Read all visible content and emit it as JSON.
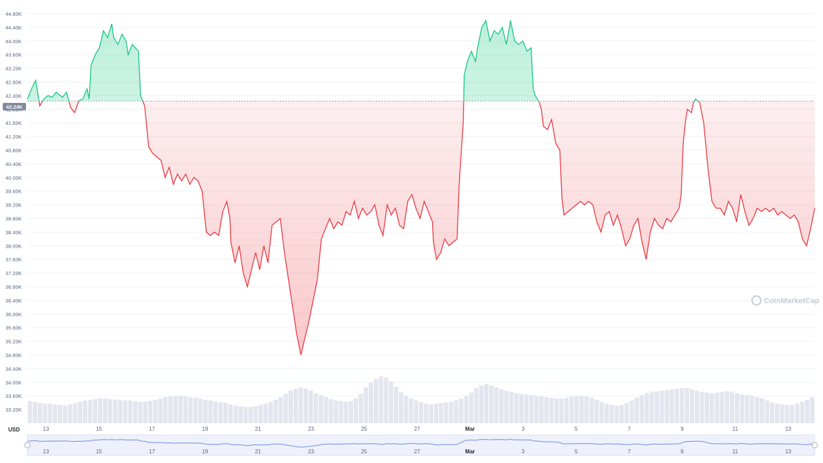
{
  "chart_data": {
    "type": "area",
    "currency": "USD",
    "current_price_label": "42.24K",
    "reference_price": 42240,
    "ylim": [
      32800,
      45000
    ],
    "yticks": [
      "33.20K",
      "33.60K",
      "34.00K",
      "34.40K",
      "34.80K",
      "35.20K",
      "35.60K",
      "36.00K",
      "36.40K",
      "36.80K",
      "37.20K",
      "37.60K",
      "38.00K",
      "38.40K",
      "38.80K",
      "39.20K",
      "39.60K",
      "40.00K",
      "40.40K",
      "40.80K",
      "41.20K",
      "41.60K",
      "42.00K",
      "42.40K",
      "42.80K",
      "43.20K",
      "43.60K",
      "44.00K",
      "44.40K",
      "44.80K"
    ],
    "ytick_values": [
      33200,
      33600,
      34000,
      34400,
      34800,
      35200,
      35600,
      36000,
      36400,
      36800,
      37200,
      37600,
      38000,
      38400,
      38800,
      39200,
      39600,
      40000,
      40400,
      40800,
      41200,
      41600,
      42000,
      42400,
      42800,
      43200,
      43600,
      44000,
      44400,
      44800
    ],
    "xticks": [
      "13",
      "15",
      "17",
      "19",
      "21",
      "23",
      "25",
      "27",
      "Mar",
      "3",
      "5",
      "7",
      "9",
      "11",
      "13"
    ],
    "xtick_days": [
      13,
      15,
      17,
      19,
      21,
      23,
      25,
      27,
      29,
      31,
      33,
      35,
      37,
      39,
      41
    ],
    "xrange_days": [
      12.1,
      42.4
    ],
    "x_unit_note_hidden": false,
    "series": [
      {
        "values": [
          [
            12.1,
            42300
          ],
          [
            12.3,
            42600
          ],
          [
            12.5,
            42850
          ],
          [
            12.7,
            42100
          ],
          [
            12.9,
            42300
          ],
          [
            13.1,
            42400
          ],
          [
            13.3,
            42350
          ],
          [
            13.5,
            42500
          ],
          [
            13.8,
            42350
          ],
          [
            14.0,
            42500
          ],
          [
            14.2,
            42050
          ],
          [
            14.4,
            41900
          ],
          [
            14.6,
            42250
          ],
          [
            14.8,
            42300
          ],
          [
            15.0,
            42600
          ],
          [
            15.1,
            42300
          ],
          [
            15.2,
            43300
          ],
          [
            15.4,
            43600
          ],
          [
            15.6,
            43800
          ],
          [
            15.8,
            44300
          ],
          [
            16.0,
            44100
          ],
          [
            16.2,
            44500
          ],
          [
            16.3,
            44100
          ],
          [
            16.5,
            43900
          ],
          [
            16.7,
            44200
          ],
          [
            16.9,
            44000
          ],
          [
            17.0,
            43600
          ],
          [
            17.2,
            43900
          ],
          [
            17.5,
            43700
          ],
          [
            17.6,
            42400
          ],
          [
            17.8,
            42100
          ],
          [
            18.0,
            40900
          ],
          [
            18.2,
            40700
          ],
          [
            18.4,
            40600
          ],
          [
            18.6,
            40500
          ],
          [
            18.8,
            40000
          ],
          [
            19.0,
            40300
          ],
          [
            19.2,
            39800
          ],
          [
            19.4,
            40100
          ],
          [
            19.6,
            39900
          ],
          [
            19.8,
            40100
          ],
          [
            20.0,
            39800
          ],
          [
            20.2,
            40000
          ],
          [
            20.4,
            39900
          ],
          [
            20.6,
            39600
          ],
          [
            20.8,
            38400
          ],
          [
            21.0,
            38300
          ],
          [
            21.2,
            38400
          ],
          [
            21.4,
            38300
          ],
          [
            21.6,
            39000
          ],
          [
            21.8,
            39300
          ],
          [
            21.95,
            38800
          ],
          [
            22.0,
            38100
          ],
          [
            22.2,
            37500
          ],
          [
            22.4,
            38000
          ],
          [
            22.6,
            37200
          ],
          [
            22.8,
            36800
          ],
          [
            23.0,
            37300
          ],
          [
            23.2,
            37800
          ],
          [
            23.4,
            37300
          ],
          [
            23.6,
            38000
          ],
          [
            23.8,
            37500
          ],
          [
            24.0,
            38600
          ],
          [
            24.2,
            38700
          ],
          [
            24.4,
            38800
          ],
          [
            24.6,
            37800
          ],
          [
            24.8,
            37000
          ],
          [
            25.0,
            36200
          ],
          [
            25.2,
            35400
          ],
          [
            25.4,
            34800
          ],
          [
            25.6,
            35300
          ],
          [
            25.8,
            35800
          ],
          [
            26.0,
            36400
          ],
          [
            26.2,
            37000
          ],
          [
            26.4,
            38200
          ],
          [
            26.6,
            38500
          ],
          [
            26.8,
            38800
          ],
          [
            27.0,
            38500
          ],
          [
            27.2,
            38700
          ],
          [
            27.4,
            38600
          ],
          [
            27.6,
            39000
          ],
          [
            27.8,
            38900
          ],
          [
            28.0,
            39300
          ],
          [
            28.2,
            38800
          ],
          [
            28.4,
            39100
          ],
          [
            28.6,
            38900
          ],
          [
            28.8,
            39000
          ],
          [
            29.0,
            39200
          ],
          [
            29.2,
            38600
          ],
          [
            29.4,
            38300
          ],
          [
            29.6,
            39200
          ],
          [
            29.8,
            38900
          ],
          [
            30.0,
            39100
          ],
          [
            30.2,
            38600
          ],
          [
            30.4,
            38500
          ],
          [
            30.6,
            39300
          ],
          [
            30.8,
            39500
          ],
          [
            31.0,
            39100
          ],
          [
            31.2,
            38800
          ],
          [
            31.4,
            39300
          ],
          [
            31.6,
            39000
          ],
          [
            31.8,
            38700
          ],
          [
            31.85,
            38100
          ],
          [
            32.0,
            37600
          ],
          [
            32.2,
            37800
          ],
          [
            32.4,
            38200
          ],
          [
            32.6,
            38000
          ],
          [
            32.8,
            38100
          ],
          [
            33.0,
            38200
          ],
          [
            33.1,
            39800
          ],
          [
            33.2,
            40700
          ],
          [
            33.3,
            41600
          ],
          [
            33.35,
            43000
          ],
          [
            33.5,
            43400
          ],
          [
            33.7,
            43700
          ],
          [
            33.9,
            43400
          ],
          [
            34.0,
            43800
          ],
          [
            34.2,
            44400
          ],
          [
            34.4,
            44600
          ],
          [
            34.6,
            44000
          ],
          [
            34.8,
            44300
          ],
          [
            35.0,
            44200
          ],
          [
            35.2,
            44400
          ],
          [
            35.4,
            43900
          ],
          [
            35.6,
            44600
          ],
          [
            35.8,
            44000
          ],
          [
            36.0,
            43900
          ],
          [
            36.2,
            44000
          ],
          [
            36.4,
            43700
          ],
          [
            36.6,
            43800
          ],
          [
            36.7,
            42600
          ],
          [
            36.8,
            42400
          ],
          [
            37.0,
            42200
          ],
          [
            37.1,
            42000
          ],
          [
            37.2,
            41500
          ],
          [
            37.4,
            41400
          ],
          [
            37.6,
            41700
          ],
          [
            37.8,
            41000
          ],
          [
            38.0,
            40800
          ],
          [
            38.1,
            39400
          ],
          [
            38.2,
            38900
          ],
          [
            38.4,
            39000
          ],
          [
            38.6,
            39100
          ],
          [
            38.8,
            39200
          ],
          [
            39.0,
            39300
          ],
          [
            39.2,
            39200
          ],
          [
            39.4,
            39300
          ],
          [
            39.6,
            39200
          ],
          [
            39.8,
            38700
          ],
          [
            40.0,
            38400
          ],
          [
            40.2,
            38900
          ],
          [
            40.4,
            39000
          ],
          [
            40.6,
            38600
          ],
          [
            40.8,
            38900
          ],
          [
            41.0,
            38500
          ],
          [
            41.2,
            38000
          ],
          [
            41.4,
            38200
          ],
          [
            41.6,
            38600
          ],
          [
            41.8,
            38800
          ],
          [
            42.0,
            38100
          ],
          [
            42.2,
            37600
          ],
          [
            42.4,
            38400
          ],
          [
            42.6,
            38800
          ],
          [
            42.8,
            38600
          ],
          [
            43.0,
            38500
          ],
          [
            43.2,
            38800
          ],
          [
            43.4,
            38700
          ],
          [
            43.6,
            38900
          ],
          [
            43.8,
            39100
          ],
          [
            43.9,
            39500
          ],
          [
            44.0,
            41000
          ],
          [
            44.1,
            41600
          ],
          [
            44.2,
            42000
          ],
          [
            44.4,
            41900
          ],
          [
            44.5,
            42200
          ],
          [
            44.6,
            42300
          ],
          [
            44.8,
            42200
          ],
          [
            45.0,
            41600
          ],
          [
            45.2,
            40300
          ],
          [
            45.4,
            39300
          ],
          [
            45.6,
            39100
          ],
          [
            45.8,
            39100
          ],
          [
            46.0,
            38900
          ],
          [
            46.2,
            39300
          ],
          [
            46.4,
            39100
          ],
          [
            46.6,
            38700
          ],
          [
            46.8,
            39500
          ],
          [
            47.0,
            39000
          ],
          [
            47.2,
            38600
          ],
          [
            47.4,
            38800
          ],
          [
            47.6,
            39100
          ],
          [
            47.8,
            39000
          ],
          [
            48.0,
            39100
          ],
          [
            48.2,
            39000
          ],
          [
            48.4,
            39100
          ],
          [
            48.6,
            38900
          ],
          [
            48.8,
            39000
          ],
          [
            49.0,
            38900
          ],
          [
            49.2,
            38800
          ],
          [
            49.4,
            38900
          ],
          [
            49.6,
            38700
          ],
          [
            49.8,
            38200
          ],
          [
            50.0,
            38000
          ],
          [
            50.2,
            38500
          ],
          [
            50.4,
            39100
          ]
        ]
      }
    ],
    "volume": [
      0.34,
      0.33,
      0.31,
      0.3,
      0.3,
      0.29,
      0.28,
      0.27,
      0.29,
      0.31,
      0.33,
      0.35,
      0.36,
      0.37,
      0.38,
      0.38,
      0.37,
      0.36,
      0.36,
      0.35,
      0.35,
      0.34,
      0.33,
      0.33,
      0.34,
      0.36,
      0.38,
      0.4,
      0.41,
      0.42,
      0.42,
      0.41,
      0.4,
      0.39,
      0.38,
      0.36,
      0.35,
      0.33,
      0.32,
      0.31,
      0.29,
      0.27,
      0.26,
      0.25,
      0.25,
      0.26,
      0.28,
      0.3,
      0.33,
      0.36,
      0.4,
      0.45,
      0.5,
      0.53,
      0.55,
      0.53,
      0.5,
      0.46,
      0.43,
      0.4,
      0.37,
      0.35,
      0.34,
      0.33,
      0.34,
      0.38,
      0.45,
      0.55,
      0.62,
      0.68,
      0.72,
      0.7,
      0.64,
      0.56,
      0.48,
      0.42,
      0.38,
      0.35,
      0.32,
      0.3,
      0.29,
      0.3,
      0.31,
      0.32,
      0.33,
      0.35,
      0.38,
      0.42,
      0.47,
      0.54,
      0.58,
      0.6,
      0.58,
      0.55,
      0.52,
      0.5,
      0.48,
      0.46,
      0.45,
      0.44,
      0.43,
      0.42,
      0.41,
      0.4,
      0.39,
      0.38,
      0.38,
      0.39,
      0.41,
      0.42,
      0.42,
      0.41,
      0.39,
      0.36,
      0.33,
      0.3,
      0.28,
      0.27,
      0.28,
      0.31,
      0.35,
      0.39,
      0.43,
      0.46,
      0.48,
      0.49,
      0.5,
      0.51,
      0.52,
      0.53,
      0.54,
      0.54,
      0.52,
      0.5,
      0.48,
      0.47,
      0.46,
      0.47,
      0.48,
      0.49,
      0.48,
      0.46,
      0.44,
      0.43,
      0.42,
      0.4,
      0.38,
      0.35,
      0.32,
      0.3,
      0.29,
      0.28,
      0.28,
      0.3,
      0.33,
      0.36,
      0.4
    ],
    "watermark": "CoinMarketCap"
  }
}
